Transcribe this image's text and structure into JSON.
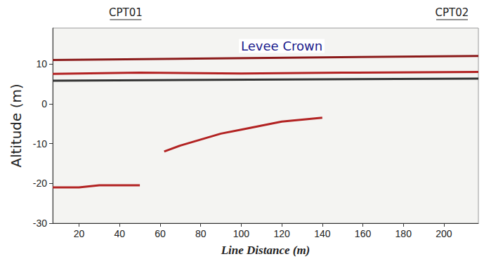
{
  "chart_data": {
    "type": "line",
    "x_label": "Line Distance (m)",
    "y_label": "Altitude (m)",
    "xlim": [
      7,
      217
    ],
    "ylim": [
      -30,
      19
    ],
    "xticks": [
      20,
      40,
      60,
      80,
      100,
      120,
      140,
      160,
      180,
      200
    ],
    "yticks": [
      -30,
      -20,
      -10,
      0,
      10
    ],
    "grid": false,
    "series": [
      {
        "color": "#8b1a1a",
        "x": [
          7,
          217
        ],
        "values": [
          11,
          12
        ]
      },
      {
        "color": "#b22222",
        "x": [
          7,
          50,
          100,
          150,
          217
        ],
        "values": [
          7.5,
          7.8,
          7.6,
          7.8,
          8
        ]
      },
      {
        "color": "#333333",
        "x": [
          7,
          217
        ],
        "values": [
          5.8,
          6.3
        ]
      },
      {
        "color": "#b22222",
        "x": [
          62,
          70,
          80,
          90,
          100,
          110,
          120,
          130,
          140
        ],
        "values": [
          -12,
          -10.5,
          -9,
          -7.5,
          -6.5,
          -5.5,
          -4.5,
          -4,
          -3.5
        ]
      },
      {
        "color": "#b22222",
        "x": [
          7,
          20,
          30,
          40,
          50
        ],
        "values": [
          -21,
          -21,
          -20.5,
          -20.5,
          -20.5
        ]
      }
    ],
    "annotations": [
      {
        "text": "Levee Crown",
        "x": 120,
        "y": 14.5
      },
      {
        "text": "CPT01",
        "x": 43
      },
      {
        "text": "CPT02",
        "x": 204
      }
    ]
  }
}
